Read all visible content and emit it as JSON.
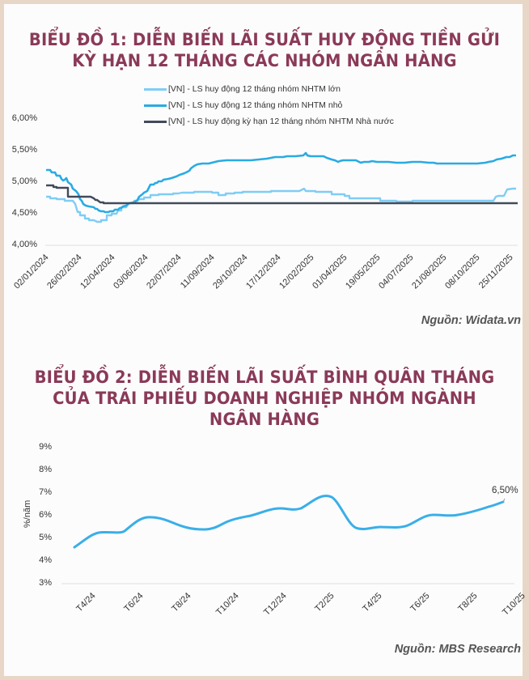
{
  "colors": {
    "background_border": "#e8d6c6",
    "title": "#8a3a58",
    "series_large": "#7fcdf5",
    "series_small": "#29abe2",
    "series_state": "#414b5a",
    "chart2_line": "#39afe8"
  },
  "chart1": {
    "title_line1": "BIỂU ĐỒ 1: DIỄN BIẾN LÃI SUẤT HUY ĐỘNG TIỀN GỬI",
    "title_line2": "KỲ HẠN 12 THÁNG CÁC NHÓM NGÂN HÀNG",
    "legend": [
      {
        "label": "[VN] -  LS huy động 12 tháng nhóm NHTM lớn",
        "color": "#7fcdf5"
      },
      {
        "label": "[VN] -  LS huy động 12 tháng nhóm NHTM nhỏ",
        "color": "#29abe2"
      },
      {
        "label": "[VN] -  LS huy động kỳ hạn 12 tháng nhóm NHTM Nhà nước",
        "color": "#414b5a"
      }
    ],
    "yticks": [
      "6,00%",
      "5,50%",
      "5,00%",
      "4,50%",
      "4,00%"
    ],
    "xticks": [
      "02/01/2024",
      "26/02/2024",
      "12/04/2024",
      "03/06/2024",
      "22/07/2024",
      "11/09/2024",
      "29/10/2024",
      "17/12/2024",
      "12/02/2025",
      "01/04/2025",
      "19/05/2025",
      "04/07/2025",
      "21/08/2025",
      "08/10/2025",
      "25/11/2025"
    ],
    "source": "Nguồn: Widata.vn"
  },
  "chart2": {
    "title_line1": "BIỂU ĐỒ 2: DIỄN BIẾN LÃI SUẤT BÌNH QUÂN THÁNG",
    "title_line2": "CỦA TRÁI PHIẾU DOANH NGHIỆP NHÓM NGÀNH",
    "title_line3": "NGÂN HÀNG",
    "ylabel": "%/năm",
    "yticks": [
      "9%",
      "8%",
      "7%",
      "6%",
      "5%",
      "4%",
      "3%"
    ],
    "xticks": [
      "T4/24",
      "T6/24",
      "T8/24",
      "T10/24",
      "T12/24",
      "T2/25",
      "T4/25",
      "T6/25",
      "T8/25",
      "T10/25"
    ],
    "annotation": "6,50%",
    "source": "Nguồn: MBS Research"
  },
  "chart_data": [
    {
      "type": "line",
      "title": "BIỂU ĐỒ 1: DIỄN BIẾN LÃI SUẤT HUY ĐỘNG TIỀN GỬI KỲ HẠN 12 THÁNG CÁC NHÓM NGÂN HÀNG",
      "xlabel": "",
      "ylabel": "",
      "ylim": [
        4.0,
        6.0
      ],
      "grid": false,
      "legend_position": "top",
      "x": [
        "02/01/2024",
        "26/02/2024",
        "12/04/2024",
        "03/06/2024",
        "22/07/2024",
        "11/09/2024",
        "29/10/2024",
        "17/12/2024",
        "12/02/2025",
        "01/04/2025",
        "19/05/2025",
        "04/07/2025",
        "21/08/2025",
        "08/10/2025",
        "25/11/2025"
      ],
      "series": [
        {
          "name": "[VN] -  LS huy động 12 tháng nhóm NHTM lớn",
          "values": [
            4.78,
            4.73,
            4.37,
            4.45,
            4.7,
            4.84,
            4.84,
            4.85,
            4.88,
            4.85,
            4.74,
            4.69,
            4.69,
            4.69,
            4.88
          ]
        },
        {
          "name": "[VN] -  LS huy động 12 tháng nhóm NHTM nhỏ",
          "values": [
            5.18,
            4.86,
            4.53,
            4.85,
            5.08,
            5.19,
            5.2,
            5.23,
            5.28,
            5.23,
            5.21,
            5.2,
            5.19,
            5.19,
            5.34
          ]
        },
        {
          "name": "[VN] -  LS huy động kỳ hạn 12 tháng nhóm NHTM Nhà nước",
          "values": [
            4.95,
            4.78,
            4.68,
            4.68,
            4.68,
            4.68,
            4.68,
            4.68,
            4.68,
            4.68,
            4.68,
            4.68,
            4.68,
            4.68,
            4.68
          ]
        }
      ]
    },
    {
      "type": "line",
      "title": "BIỂU ĐỒ 2: DIỄN BIẾN LÃI SUẤT BÌNH QUÂN THÁNG CỦA TRÁI PHIẾU DOANH NGHIỆP NHÓM NGÀNH NGÂN HÀNG",
      "xlabel": "",
      "ylabel": "%/năm",
      "ylim": [
        3,
        9
      ],
      "grid": false,
      "categories": [
        "T4/24",
        "T5/24",
        "T6/24",
        "T7/24",
        "T8/24",
        "T9/24",
        "T10/24",
        "T11/24",
        "T12/24",
        "T1/25",
        "T2/25",
        "T3/25",
        "T4/25",
        "T5/25",
        "T6/25",
        "T7/25",
        "T8/25",
        "T9/25",
        "T10/25"
      ],
      "values": [
        4.6,
        5.2,
        5.25,
        5.9,
        5.8,
        5.55,
        5.4,
        5.8,
        6.0,
        6.3,
        6.3,
        6.9,
        5.45,
        5.5,
        5.5,
        6.0,
        6.0,
        6.2,
        6.5
      ],
      "annotations": [
        {
          "x": "T10/25",
          "text": "6,50%"
        }
      ]
    }
  ]
}
